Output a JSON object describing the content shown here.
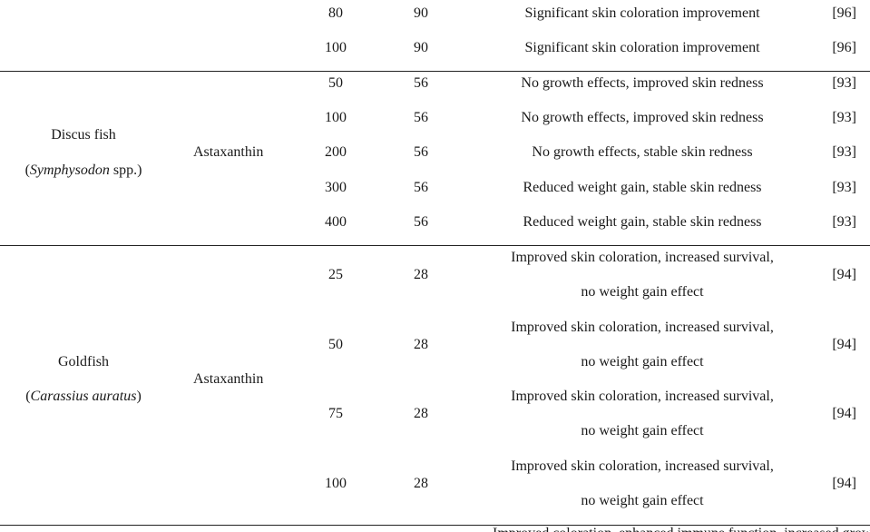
{
  "table": {
    "groups": [
      {
        "species_common": "",
        "species_sci": "",
        "species_suffix": "",
        "compound": "",
        "rows": [
          {
            "dose": "80",
            "days": "90",
            "effect_lines": [
              "Significant skin coloration improvement"
            ],
            "ref": "[96]"
          },
          {
            "dose": "100",
            "days": "90",
            "effect_lines": [
              "Significant skin coloration improvement"
            ],
            "ref": "[96]"
          }
        ]
      },
      {
        "species_common": "Discus fish",
        "species_sci": "Symphysodon",
        "species_suffix": " spp.",
        "compound": "Astaxanthin",
        "rows": [
          {
            "dose": "50",
            "days": "56",
            "effect_lines": [
              "No growth effects, improved skin redness"
            ],
            "ref": "[93]"
          },
          {
            "dose": "100",
            "days": "56",
            "effect_lines": [
              "No growth effects, improved skin redness"
            ],
            "ref": "[93]"
          },
          {
            "dose": "200",
            "days": "56",
            "effect_lines": [
              "No growth effects, stable skin redness"
            ],
            "ref": "[93]"
          },
          {
            "dose": "300",
            "days": "56",
            "effect_lines": [
              "Reduced weight gain, stable skin redness"
            ],
            "ref": "[93]"
          },
          {
            "dose": "400",
            "days": "56",
            "effect_lines": [
              "Reduced weight gain, stable skin redness"
            ],
            "ref": "[93]"
          }
        ]
      },
      {
        "species_common": "Goldfish",
        "species_sci": "Carassius auratus",
        "species_suffix": "",
        "compound": "Astaxanthin",
        "rows": [
          {
            "dose": "25",
            "days": "28",
            "effect_lines": [
              "Improved skin coloration, increased survival,",
              "no weight gain effect"
            ],
            "ref": "[94]"
          },
          {
            "dose": "50",
            "days": "28",
            "effect_lines": [
              "Improved skin coloration, increased survival,",
              "no weight gain effect"
            ],
            "ref": "[94]"
          },
          {
            "dose": "75",
            "days": "28",
            "effect_lines": [
              "Improved skin coloration, increased survival,",
              "no weight gain effect"
            ],
            "ref": "[94]"
          },
          {
            "dose": "100",
            "days": "28",
            "effect_lines": [
              "Improved skin coloration, increased survival,",
              "no weight gain effect"
            ],
            "ref": "[94]"
          }
        ]
      }
    ],
    "cutoff_text": "Improved coloration, enhanced immune function, increased growth"
  }
}
